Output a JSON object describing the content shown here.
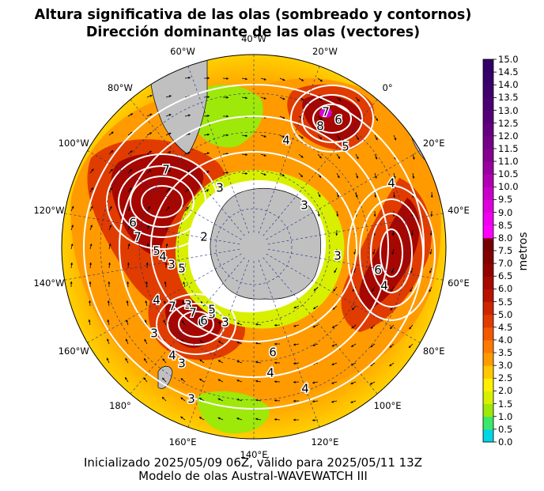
{
  "title": {
    "line1": "Altura significativa de las olas (sombreado y contornos)",
    "line2": "Dirección dominante de las olas (vectores)"
  },
  "footer": {
    "line1": "Inicializado 2025/05/09 06Z, válido para 2025/05/11 13Z",
    "line2": "Modelo de olas Austral-WAVEWATCH III"
  },
  "map": {
    "projection": "south-polar-stereographic",
    "longitude_labels": [
      "40°W",
      "20°W",
      "0°",
      "20°E",
      "40°E",
      "60°E",
      "80°E",
      "100°E",
      "120°E",
      "140°E",
      "160°E",
      "180°",
      "160°W",
      "140°W",
      "120°W",
      "100°W",
      "80°W",
      "60°W"
    ],
    "contour_labels": [
      "7",
      "6",
      "8",
      "5",
      "4",
      "4",
      "7",
      "3",
      "5",
      "4",
      "3",
      "7",
      "6",
      "5",
      "4",
      "3",
      "2",
      "3",
      "6",
      "4",
      "7",
      "5",
      "3",
      "6",
      "6",
      "4",
      "3",
      "3",
      "7",
      "6",
      "5",
      "4",
      "3",
      "4",
      "3"
    ],
    "land_color": "#c0c0c0",
    "ice_color": "#ffffff"
  },
  "colorbar": {
    "label": "metros",
    "ticks": [
      "15.0",
      "14.5",
      "14.0",
      "13.5",
      "13.0",
      "12.5",
      "12.0",
      "11.5",
      "11.0",
      "10.5",
      "10.0",
      "9.5",
      "9.0",
      "8.5",
      "8.0",
      "7.5",
      "7.0",
      "6.5",
      "6.0",
      "5.5",
      "5.0",
      "4.5",
      "4.0",
      "3.5",
      "3.0",
      "2.5",
      "2.0",
      "1.5",
      "1.0",
      "0.5",
      "0.0"
    ],
    "colors": [
      "#00d5e6",
      "#3ce86a",
      "#9ee80a",
      "#d8f000",
      "#ffef00",
      "#ffc800",
      "#ff9b00",
      "#ff7a00",
      "#f25800",
      "#e03c00",
      "#cc2500",
      "#b81200",
      "#a60700",
      "#930000",
      "#820000",
      "#760000",
      "#ff00ff",
      "#f000f0",
      "#de00dc",
      "#c800c8",
      "#b000b4",
      "#9a009e",
      "#860090",
      "#740088",
      "#640080",
      "#560078",
      "#4a0072",
      "#40006c",
      "#38006a",
      "#300066"
    ]
  }
}
